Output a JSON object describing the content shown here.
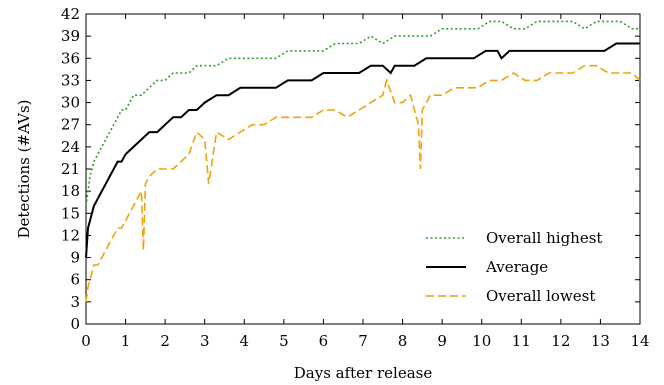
{
  "chart_data": {
    "type": "line",
    "xlabel": "Days after release",
    "ylabel": "Detections (#AVs)",
    "xlim": [
      0,
      14
    ],
    "ylim": [
      0,
      42
    ],
    "xticks": [
      0,
      1,
      2,
      3,
      4,
      5,
      6,
      7,
      8,
      9,
      10,
      11,
      12,
      13,
      14
    ],
    "yticks": [
      0,
      3,
      6,
      9,
      12,
      15,
      18,
      21,
      24,
      27,
      30,
      33,
      36,
      39,
      42
    ],
    "grid": false,
    "legend_position": "lower-right",
    "series": [
      {
        "name": "Overall highest",
        "color": "#2ca02c",
        "style": "dotted",
        "x": [
          0,
          0.1,
          0.2,
          0.3,
          0.4,
          0.5,
          0.6,
          0.7,
          0.8,
          0.9,
          1.0,
          1.2,
          1.4,
          1.6,
          1.8,
          2.0,
          2.2,
          2.4,
          2.6,
          2.8,
          3.0,
          3.3,
          3.6,
          3.9,
          4.2,
          4.5,
          4.8,
          5.1,
          5.4,
          5.7,
          6.0,
          6.3,
          6.6,
          6.9,
          7.2,
          7.5,
          7.8,
          8.1,
          8.4,
          8.7,
          9.0,
          9.3,
          9.6,
          9.9,
          10.2,
          10.5,
          10.8,
          11.1,
          11.4,
          11.7,
          12.0,
          12.3,
          12.6,
          12.9,
          13.2,
          13.5,
          13.8,
          14.0
        ],
        "values": [
          16,
          20,
          22,
          23,
          24,
          25,
          26,
          27,
          28,
          29,
          29,
          31,
          31,
          32,
          33,
          33,
          34,
          34,
          34,
          35,
          35,
          35,
          36,
          36,
          36,
          36,
          36,
          37,
          37,
          37,
          37,
          38,
          38,
          38,
          39,
          38,
          39,
          39,
          39,
          39,
          40,
          40,
          40,
          40,
          41,
          41,
          40,
          40,
          41,
          41,
          41,
          41,
          40,
          41,
          41,
          41,
          40,
          40
        ]
      },
      {
        "name": "Average",
        "color": "#000000",
        "style": "solid",
        "x": [
          0,
          0.05,
          0.1,
          0.2,
          0.3,
          0.4,
          0.5,
          0.6,
          0.7,
          0.8,
          0.9,
          1.0,
          1.2,
          1.4,
          1.6,
          1.8,
          2.0,
          2.2,
          2.4,
          2.6,
          2.8,
          3.0,
          3.3,
          3.6,
          3.9,
          4.2,
          4.5,
          4.8,
          5.1,
          5.4,
          5.7,
          6.0,
          6.3,
          6.6,
          6.9,
          7.2,
          7.5,
          7.7,
          7.8,
          8.0,
          8.3,
          8.6,
          8.9,
          9.2,
          9.5,
          9.8,
          10.1,
          10.4,
          10.5,
          10.7,
          11.0,
          11.3,
          11.6,
          11.9,
          12.2,
          12.5,
          12.8,
          13.1,
          13.4,
          13.7,
          14.0
        ],
        "values": [
          9,
          13,
          14,
          16,
          17,
          18,
          19,
          20,
          21,
          22,
          22,
          23,
          24,
          25,
          26,
          26,
          27,
          28,
          28,
          29,
          29,
          30,
          31,
          31,
          32,
          32,
          32,
          32,
          33,
          33,
          33,
          34,
          34,
          34,
          34,
          35,
          35,
          34,
          35,
          35,
          35,
          36,
          36,
          36,
          36,
          36,
          37,
          37,
          36,
          37,
          37,
          37,
          37,
          37,
          37,
          37,
          37,
          37,
          38,
          38,
          38
        ]
      },
      {
        "name": "Overall lowest",
        "color": "#f0a30a",
        "style": "dashed",
        "x": [
          0,
          0.05,
          0.1,
          0.2,
          0.3,
          0.4,
          0.5,
          0.6,
          0.7,
          0.8,
          0.9,
          1.0,
          1.1,
          1.2,
          1.3,
          1.4,
          1.45,
          1.5,
          1.6,
          1.8,
          2.0,
          2.2,
          2.4,
          2.6,
          2.8,
          3.0,
          3.1,
          3.3,
          3.6,
          3.9,
          4.2,
          4.5,
          4.8,
          5.1,
          5.4,
          5.7,
          6.0,
          6.3,
          6.6,
          6.9,
          7.2,
          7.5,
          7.6,
          7.8,
          8.0,
          8.2,
          8.4,
          8.45,
          8.5,
          8.7,
          9.0,
          9.3,
          9.6,
          9.9,
          10.2,
          10.5,
          10.8,
          11.1,
          11.4,
          11.7,
          12.0,
          12.3,
          12.6,
          12.9,
          13.2,
          13.5,
          13.8,
          14.0
        ],
        "values": [
          3,
          5,
          6,
          8,
          8,
          9,
          10,
          11,
          12,
          13,
          13,
          14,
          15,
          16,
          17,
          18,
          10,
          19,
          20,
          21,
          21,
          21,
          22,
          23,
          26,
          25,
          19,
          26,
          25,
          26,
          27,
          27,
          28,
          28,
          28,
          28,
          29,
          29,
          28,
          29,
          30,
          31,
          33,
          30,
          30,
          31,
          27,
          21,
          29,
          31,
          31,
          32,
          32,
          32,
          33,
          33,
          34,
          33,
          33,
          34,
          34,
          34,
          35,
          35,
          34,
          34,
          34,
          33
        ]
      }
    ]
  }
}
